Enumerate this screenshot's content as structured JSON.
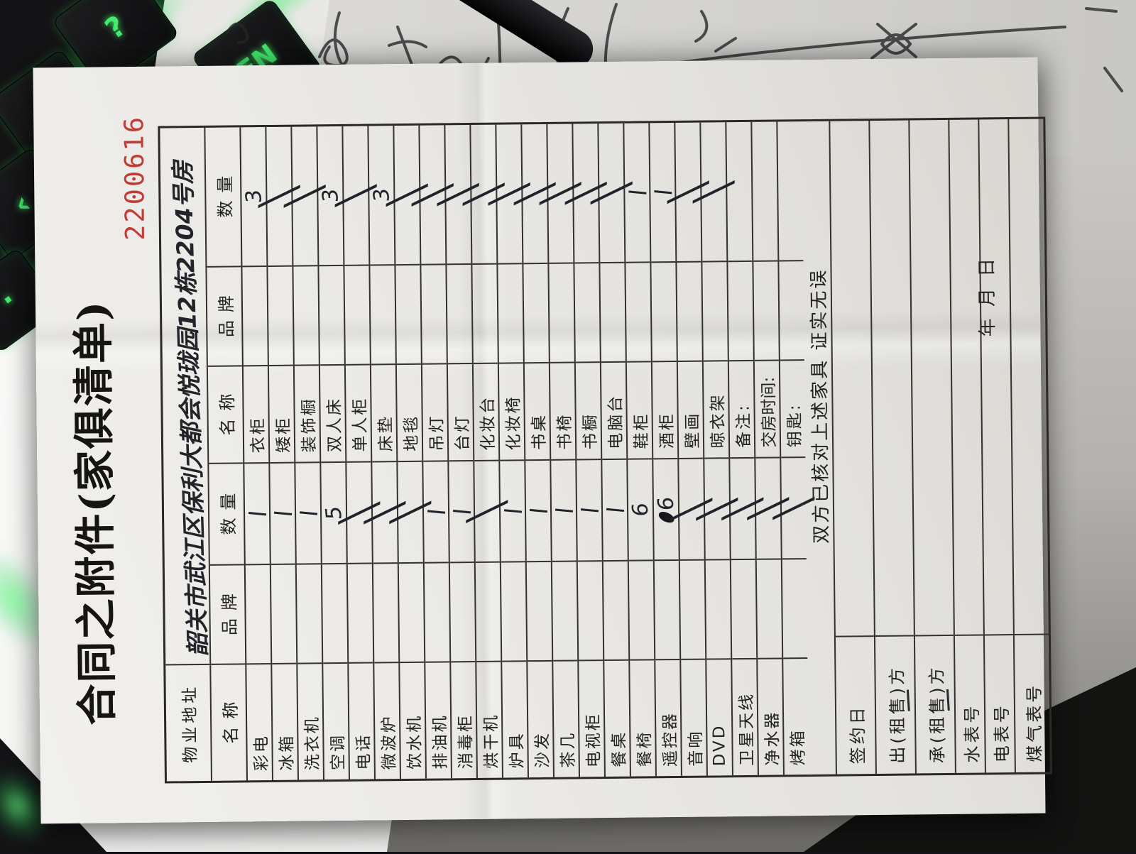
{
  "title": "合同之附件(家俱清单)",
  "serial_number": "2200616",
  "form": {
    "address_label": "物业地址",
    "address_value": "韶关市武江区保利大都会悦珑园12栋2204号房",
    "column_headers": [
      "名称",
      "品牌",
      "数量",
      "名称",
      "品牌",
      "数量"
    ],
    "rows": [
      {
        "name1": "彩电",
        "qty1": "1",
        "name2": "衣柜",
        "qty2": "3"
      },
      {
        "name1": "冰箱",
        "qty1": "1",
        "name2": "矮柜",
        "qty2": "/"
      },
      {
        "name1": "洗衣机",
        "qty1": "1",
        "name2": "装饰橱",
        "qty2": "/"
      },
      {
        "name1": "空调",
        "qty1": "5",
        "name2": "双人床",
        "qty2": "3"
      },
      {
        "name1": "电话",
        "qty1": "/",
        "name2": "单人柜",
        "qty2": "/"
      },
      {
        "name1": "微波炉",
        "qty1": "/",
        "name2": "床垫",
        "qty2": "3"
      },
      {
        "name1": "饮水机",
        "qty1": "/",
        "name2": "地毯",
        "qty2": "/"
      },
      {
        "name1": "排油机",
        "qty1": "1",
        "name2": "吊灯",
        "qty2": "/"
      },
      {
        "name1": "消毒柜",
        "qty1": "1",
        "name2": "台灯",
        "qty2": "/"
      },
      {
        "name1": "烘干机",
        "qty1": "/",
        "name2": "化妆台",
        "qty2": "/"
      },
      {
        "name1": "炉具",
        "qty1": "1",
        "name2": "化妆椅",
        "qty2": "/"
      },
      {
        "name1": "沙发",
        "qty1": "1",
        "name2": "书桌",
        "qty2": "/"
      },
      {
        "name1": "茶几",
        "qty1": "1",
        "name2": "书椅",
        "qty2": "/"
      },
      {
        "name1": "电视柜",
        "qty1": "1",
        "name2": "书橱",
        "qty2": "/"
      },
      {
        "name1": "餐桌",
        "qty1": "1",
        "name2": "电脑台",
        "qty2": "/"
      },
      {
        "name1": "餐椅",
        "qty1": "6",
        "name2": "鞋柜",
        "qty2": "1"
      },
      {
        "name1": "遥控器",
        "qty1": "s6",
        "name2": "酒柜",
        "qty2": "1"
      },
      {
        "name1": "音响",
        "qty1": "/",
        "name2": "壁画",
        "qty2": "/"
      },
      {
        "name1": "DVD",
        "qty1": "/",
        "name2": "晾衣架",
        "qty2": "/"
      },
      {
        "name1": "卫星天线",
        "qty1": "/",
        "name2": "备注:",
        "qty2": ""
      },
      {
        "name1": "净水器",
        "qty1": "/",
        "name2": "交房时间:",
        "qty2": ""
      },
      {
        "name1": "烤箱",
        "qty1": "/",
        "name2": "钥匙:",
        "qty2": ""
      }
    ],
    "confirm_line": "双方已核对上述家具  证实无误",
    "bottom_labels": [
      "签约日",
      "出(租售)方",
      "承(租售)方",
      "水表号",
      "电表号",
      "煤气表号"
    ],
    "date_suffix": "年    月    日"
  },
  "colors": {
    "serial_red": "#c23b35",
    "key_glow_green": "#46ea6e",
    "ink": "#23232a"
  },
  "keyboard": {
    "visible_key_labels": [
      "?",
      "FN",
      "›",
      "‹",
      "·"
    ]
  }
}
